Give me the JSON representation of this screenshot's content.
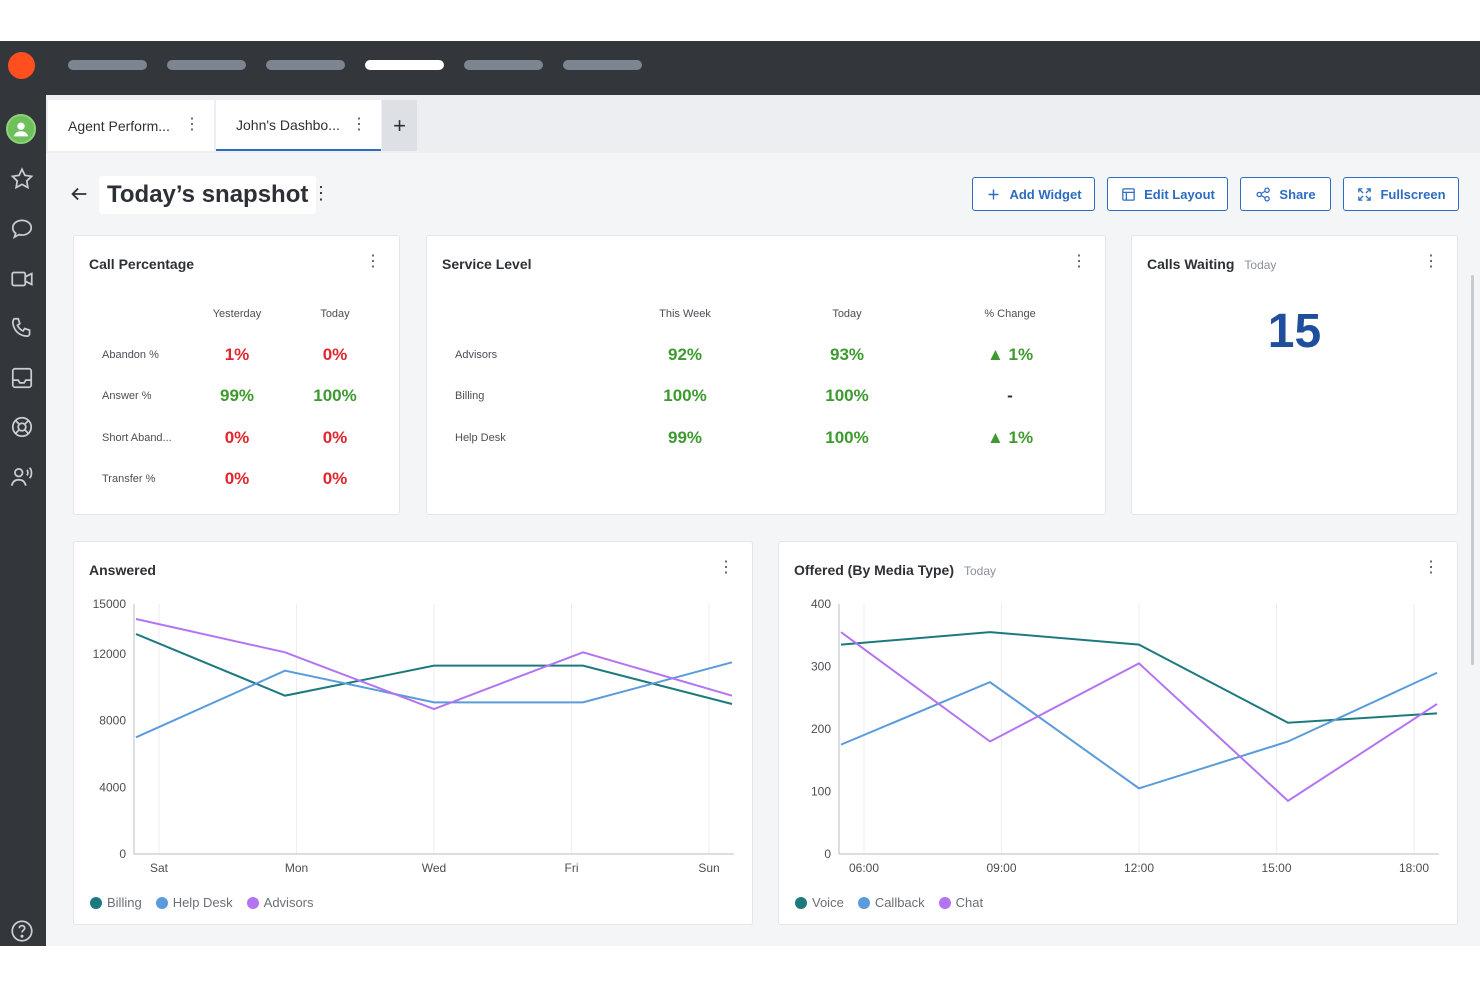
{
  "tabs": [
    {
      "label": "Agent Perform..."
    },
    {
      "label": "John's Dashbo..."
    }
  ],
  "tab_add": "+",
  "page": {
    "title": "Today’s snapshot"
  },
  "buttons": {
    "add_widget": "Add Widget",
    "edit_layout": "Edit Layout",
    "share": "Share",
    "fullscreen": "Fullscreen"
  },
  "call_percentage": {
    "title": "Call Percentage",
    "headers": [
      "Yesterday",
      "Today"
    ],
    "rows": [
      {
        "label": "Abandon %",
        "yesterday": "1%",
        "today": "0%"
      },
      {
        "label": "Answer %",
        "yesterday": "99%",
        "today": "100%"
      },
      {
        "label": "Short Aband...",
        "yesterday": "0%",
        "today": "0%"
      },
      {
        "label": "Transfer %",
        "yesterday": "0%",
        "today": "0%"
      }
    ]
  },
  "service_level": {
    "title": "Service Level",
    "headers": [
      "This Week",
      "Today",
      "% Change"
    ],
    "rows": [
      {
        "label": "Advisors",
        "week": "92%",
        "today": "93%",
        "change": "▲ 1%"
      },
      {
        "label": "Billing",
        "week": "100%",
        "today": "100%",
        "change": "-"
      },
      {
        "label": "Help Desk",
        "week": "99%",
        "today": "100%",
        "change": "▲ 1%"
      }
    ]
  },
  "calls_waiting": {
    "title": "Calls Waiting",
    "subtitle": "Today",
    "value": "15"
  },
  "colors": {
    "teal": "#1c7a7e",
    "blue": "#5a9bdc",
    "purple": "#b374f2",
    "accent": "#2d6cc1",
    "red": "#e0262c",
    "green": "#3d9a2f"
  },
  "chart_data": [
    {
      "type": "line",
      "title": "Answered",
      "x": [
        "Sat",
        "Mon",
        "Wed",
        "Fri",
        "Sun"
      ],
      "ylim": [
        0,
        15000
      ],
      "yticks": [
        0,
        4000,
        8000,
        12000,
        15000
      ],
      "grid": true,
      "legend_position": "bottom-left",
      "series": [
        {
          "name": "Billing",
          "color": "#1c7a7e",
          "values": [
            13200,
            9500,
            11300,
            11300,
            9000
          ]
        },
        {
          "name": "Help Desk",
          "color": "#5a9bdc",
          "values": [
            7000,
            11000,
            9100,
            9100,
            11500
          ]
        },
        {
          "name": "Advisors",
          "color": "#b374f2",
          "values": [
            14100,
            12100,
            8700,
            12100,
            9500
          ]
        }
      ]
    },
    {
      "type": "line",
      "title": "Offered (By Media Type)",
      "subtitle": "Today",
      "x": [
        "06:00",
        "09:00",
        "12:00",
        "15:00",
        "18:00"
      ],
      "ylim": [
        0,
        400
      ],
      "yticks": [
        0,
        100,
        200,
        300,
        400
      ],
      "grid": true,
      "legend_position": "bottom-left",
      "series": [
        {
          "name": "Voice",
          "color": "#1c7a7e",
          "values": [
            335,
            355,
            335,
            210,
            225
          ]
        },
        {
          "name": "Callback",
          "color": "#5a9bdc",
          "values": [
            175,
            275,
            105,
            180,
            290
          ]
        },
        {
          "name": "Chat",
          "color": "#b374f2",
          "values": [
            355,
            180,
            305,
            85,
            240
          ]
        }
      ]
    }
  ]
}
